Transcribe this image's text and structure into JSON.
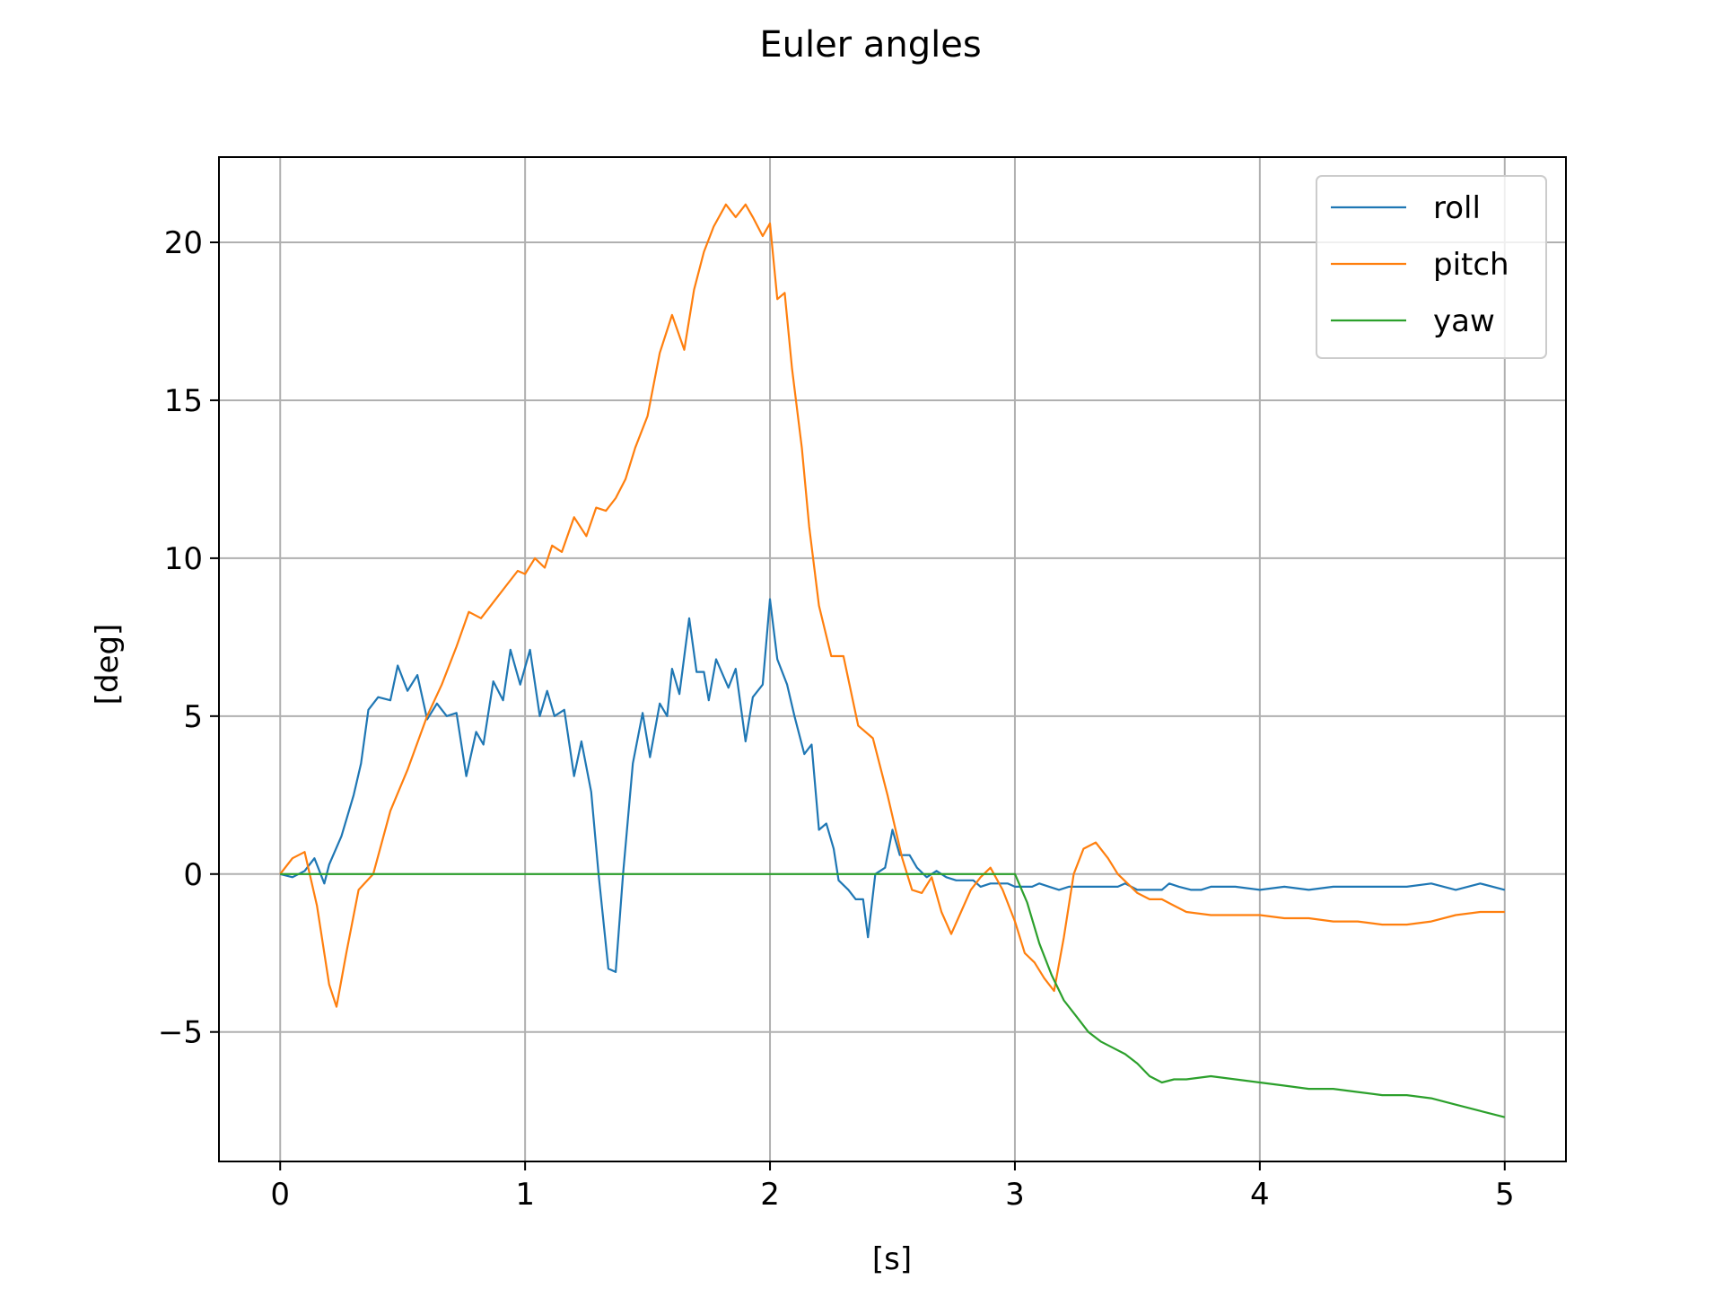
{
  "chart_data": {
    "type": "line",
    "title": "Euler angles",
    "xlabel": "[s]",
    "ylabel": "[deg]",
    "xlim": [
      -0.25,
      5.25
    ],
    "ylim": [
      -9.1,
      22.7
    ],
    "xticks": [
      0,
      1,
      2,
      3,
      4,
      5
    ],
    "xtick_labels": [
      "0",
      "1",
      "2",
      "3",
      "4",
      "5"
    ],
    "yticks": [
      -5,
      0,
      5,
      10,
      15,
      20
    ],
    "ytick_labels": [
      "−5",
      "0",
      "5",
      "10",
      "15",
      "20"
    ],
    "grid": true,
    "legend_position": "top-right",
    "series": [
      {
        "name": "roll",
        "color": "#1f77b4",
        "x": [
          0,
          0.05,
          0.1,
          0.14,
          0.18,
          0.2,
          0.25,
          0.3,
          0.33,
          0.36,
          0.4,
          0.45,
          0.48,
          0.52,
          0.56,
          0.6,
          0.64,
          0.68,
          0.72,
          0.76,
          0.8,
          0.83,
          0.87,
          0.91,
          0.94,
          0.98,
          1.02,
          1.06,
          1.09,
          1.12,
          1.16,
          1.2,
          1.23,
          1.27,
          1.3,
          1.34,
          1.37,
          1.4,
          1.44,
          1.48,
          1.51,
          1.55,
          1.58,
          1.6,
          1.63,
          1.67,
          1.7,
          1.73,
          1.75,
          1.78,
          1.83,
          1.86,
          1.9,
          1.93,
          1.97,
          2.0,
          2.03,
          2.07,
          2.1,
          2.14,
          2.17,
          2.2,
          2.23,
          2.26,
          2.28,
          2.32,
          2.35,
          2.38,
          2.4,
          2.43,
          2.47,
          2.5,
          2.53,
          2.57,
          2.6,
          2.64,
          2.68,
          2.72,
          2.76,
          2.8,
          2.83,
          2.86,
          2.9,
          2.93,
          2.97,
          3.0,
          3.04,
          3.07,
          3.1,
          3.14,
          3.18,
          3.22,
          3.26,
          3.3,
          3.34,
          3.38,
          3.42,
          3.45,
          3.5,
          3.55,
          3.6,
          3.63,
          3.67,
          3.72,
          3.76,
          3.8,
          3.85,
          3.9,
          4.0,
          4.1,
          4.2,
          4.3,
          4.4,
          4.5,
          4.6,
          4.7,
          4.8,
          4.9,
          5.0
        ],
        "values": [
          0,
          -0.1,
          0.1,
          0.5,
          -0.3,
          0.3,
          1.2,
          2.5,
          3.5,
          5.2,
          5.6,
          5.5,
          6.6,
          5.8,
          6.3,
          4.9,
          5.4,
          5.0,
          5.1,
          3.1,
          4.5,
          4.1,
          6.1,
          5.5,
          7.1,
          6.0,
          7.1,
          5.0,
          5.8,
          5.0,
          5.2,
          3.1,
          4.2,
          2.6,
          0.0,
          -3.0,
          -3.1,
          0.0,
          3.5,
          5.1,
          3.7,
          5.4,
          5.0,
          6.5,
          5.7,
          8.1,
          6.4,
          6.4,
          5.5,
          6.8,
          5.9,
          6.5,
          4.2,
          5.6,
          6.0,
          8.7,
          6.8,
          6.0,
          5.0,
          3.8,
          4.1,
          1.4,
          1.6,
          0.8,
          -0.2,
          -0.5,
          -0.8,
          -0.8,
          -2.0,
          0.0,
          0.2,
          1.4,
          0.6,
          0.6,
          0.2,
          -0.1,
          0.1,
          -0.1,
          -0.2,
          -0.2,
          -0.2,
          -0.4,
          -0.3,
          -0.3,
          -0.3,
          -0.4,
          -0.4,
          -0.4,
          -0.3,
          -0.4,
          -0.5,
          -0.4,
          -0.4,
          -0.4,
          -0.4,
          -0.4,
          -0.4,
          -0.3,
          -0.5,
          -0.5,
          -0.5,
          -0.3,
          -0.4,
          -0.5,
          -0.5,
          -0.4,
          -0.4,
          -0.4,
          -0.5,
          -0.4,
          -0.5,
          -0.4,
          -0.4,
          -0.4,
          -0.4,
          -0.3,
          -0.5,
          -0.3,
          -0.5
        ]
      },
      {
        "name": "pitch",
        "color": "#ff7f0e",
        "x": [
          0,
          0.05,
          0.1,
          0.15,
          0.2,
          0.23,
          0.27,
          0.32,
          0.38,
          0.45,
          0.52,
          0.6,
          0.66,
          0.72,
          0.77,
          0.82,
          0.88,
          0.93,
          0.97,
          1.0,
          1.04,
          1.08,
          1.11,
          1.15,
          1.2,
          1.25,
          1.29,
          1.33,
          1.37,
          1.41,
          1.45,
          1.5,
          1.55,
          1.6,
          1.65,
          1.69,
          1.73,
          1.77,
          1.82,
          1.86,
          1.9,
          1.93,
          1.97,
          2.0,
          2.03,
          2.06,
          2.09,
          2.13,
          2.16,
          2.2,
          2.25,
          2.3,
          2.36,
          2.42,
          2.48,
          2.54,
          2.58,
          2.62,
          2.66,
          2.7,
          2.74,
          2.78,
          2.82,
          2.86,
          2.9,
          2.95,
          3.0,
          3.04,
          3.08,
          3.12,
          3.16,
          3.2,
          3.24,
          3.28,
          3.33,
          3.38,
          3.42,
          3.46,
          3.5,
          3.55,
          3.6,
          3.65,
          3.7,
          3.8,
          3.9,
          4.0,
          4.1,
          4.2,
          4.3,
          4.4,
          4.5,
          4.6,
          4.7,
          4.8,
          4.9,
          5.0
        ],
        "values": [
          0,
          0.5,
          0.7,
          -1.0,
          -3.5,
          -4.2,
          -2.5,
          -0.5,
          0.0,
          2.0,
          3.3,
          5.0,
          6.0,
          7.2,
          8.3,
          8.1,
          8.7,
          9.2,
          9.6,
          9.5,
          10.0,
          9.7,
          10.4,
          10.2,
          11.3,
          10.7,
          11.6,
          11.5,
          11.9,
          12.5,
          13.5,
          14.5,
          16.5,
          17.7,
          16.6,
          18.5,
          19.7,
          20.5,
          21.2,
          20.8,
          21.2,
          20.8,
          20.2,
          20.6,
          18.2,
          18.4,
          16.0,
          13.5,
          11.0,
          8.5,
          6.9,
          6.9,
          4.7,
          4.3,
          2.5,
          0.5,
          -0.5,
          -0.6,
          -0.1,
          -1.2,
          -1.9,
          -1.2,
          -0.5,
          -0.1,
          0.2,
          -0.5,
          -1.5,
          -2.5,
          -2.8,
          -3.3,
          -3.7,
          -2.0,
          0.0,
          0.8,
          1.0,
          0.5,
          0.0,
          -0.3,
          -0.6,
          -0.8,
          -0.8,
          -1.0,
          -1.2,
          -1.3,
          -1.3,
          -1.3,
          -1.4,
          -1.4,
          -1.5,
          -1.5,
          -1.6,
          -1.6,
          -1.5,
          -1.3,
          -1.2,
          -1.2
        ]
      },
      {
        "name": "yaw",
        "color": "#2ca02c",
        "x": [
          0,
          0.5,
          1.0,
          1.5,
          2.0,
          2.5,
          3.0,
          3.05,
          3.1,
          3.15,
          3.2,
          3.25,
          3.3,
          3.35,
          3.4,
          3.45,
          3.5,
          3.55,
          3.6,
          3.65,
          3.7,
          3.8,
          3.9,
          4.0,
          4.1,
          4.2,
          4.3,
          4.4,
          4.5,
          4.6,
          4.7,
          4.8,
          4.9,
          5.0
        ],
        "values": [
          0,
          0,
          0,
          0,
          0,
          0,
          0,
          -0.9,
          -2.2,
          -3.2,
          -4.0,
          -4.5,
          -5.0,
          -5.3,
          -5.5,
          -5.7,
          -6.0,
          -6.4,
          -6.6,
          -6.5,
          -6.5,
          -6.4,
          -6.5,
          -6.6,
          -6.7,
          -6.8,
          -6.8,
          -6.9,
          -7.0,
          -7.0,
          -7.1,
          -7.3,
          -7.5,
          -7.7
        ]
      }
    ]
  }
}
